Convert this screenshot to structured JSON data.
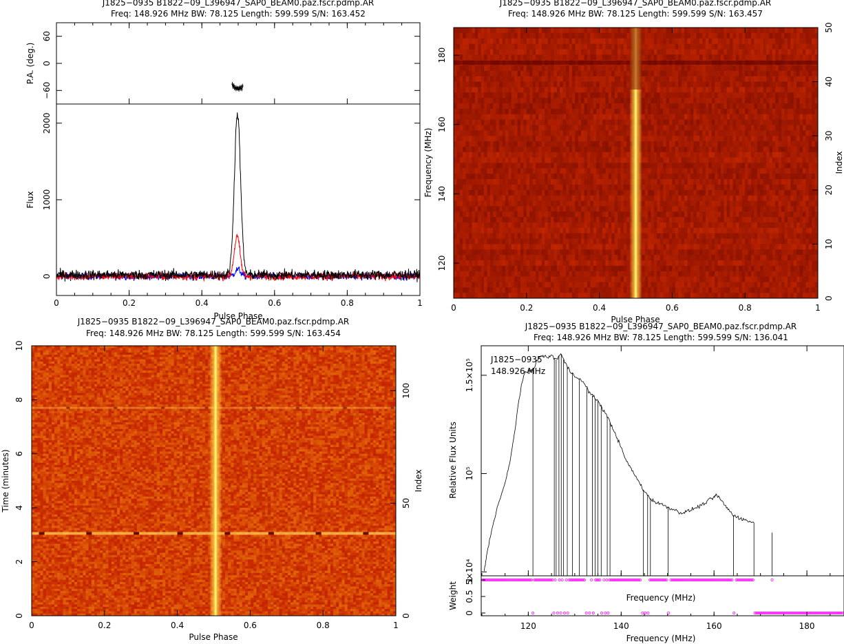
{
  "colors": {
    "background": "#ffffff",
    "axes": "#000000",
    "total_intensity": "#000000",
    "linear_pol": "#ff0000",
    "circular_pol": "#0000ff",
    "weights": "#ff00ff",
    "heat_low": "#6b0000",
    "heat_mid": "#c0501a",
    "heat_high": "#ffff80"
  },
  "chart_data": [
    {
      "id": "profile",
      "type": "line",
      "title": "J1825−0935  B1822−09_L396947_SAP0_BEAM0.paz.fscr.pdmp.AR",
      "subtitle": "Freq: 148.926 MHz  BW: 78.125  Length: 599.599  S/N: 163.452",
      "xlabel": "Pulse Phase",
      "x_ticks": [
        "0",
        "0.2",
        "0.4",
        "0.6",
        "0.8",
        "1"
      ],
      "xlim": [
        0,
        1
      ],
      "panels": [
        {
          "ylabel": "P.A. (deg.)",
          "y_ticks": [
            "−60",
            "0",
            "60"
          ],
          "ylim": [
            -90,
            90
          ],
          "points": [
            [
              0.484,
              -46
            ],
            [
              0.486,
              -52
            ],
            [
              0.488,
              -49
            ],
            [
              0.49,
              -55
            ],
            [
              0.492,
              -53
            ],
            [
              0.494,
              -57
            ],
            [
              0.496,
              -54
            ],
            [
              0.498,
              -56
            ],
            [
              0.5,
              -55
            ],
            [
              0.502,
              -58
            ],
            [
              0.504,
              -53
            ],
            [
              0.506,
              -56
            ],
            [
              0.508,
              -52
            ],
            [
              0.51,
              -57
            ],
            [
              0.512,
              -50
            ]
          ]
        },
        {
          "ylabel": "Flux",
          "y_ticks": [
            "0",
            "1000",
            "2000"
          ],
          "ylim": [
            -250,
            2250
          ],
          "series": [
            {
              "key": "total",
              "peak": 2110,
              "center": 0.498,
              "width": 0.0085,
              "noise": 28
            },
            {
              "key": "linear",
              "peak": 520,
              "center": 0.497,
              "width": 0.008,
              "noise": 22
            },
            {
              "key": "circular",
              "peak": 90,
              "center": 0.499,
              "width": 0.008,
              "noise": 20
            }
          ]
        }
      ]
    },
    {
      "id": "freq_phase",
      "type": "heatmap",
      "title": "J1825−0935  B1822−09_L396947_SAP0_BEAM0.paz.fscr.pdmp.AR",
      "subtitle": "Freq: 148.926 MHz  BW: 78.125  Length: 599.599  S/N: 163.457",
      "xlabel": "Pulse Phase",
      "ylabel": "Frequency (MHz)",
      "y2label": "Index",
      "x_ticks": [
        "0",
        "0.2",
        "0.4",
        "0.6",
        "0.8",
        "1"
      ],
      "y_ticks": [
        "120",
        "140",
        "160",
        "180"
      ],
      "y2_ticks": [
        "0",
        "10",
        "20",
        "30",
        "40",
        "50"
      ],
      "xlim": [
        0,
        1
      ],
      "ylim": [
        109.863,
        187.988
      ],
      "y2lim": [
        0,
        50
      ],
      "pulse_center": 0.5
    },
    {
      "id": "time_phase",
      "type": "heatmap",
      "title": "J1825−0935  B1822−09_L396947_SAP0_BEAM0.paz.fscr.pdmp.AR",
      "subtitle": "Freq: 148.926 MHz  BW: 78.125  Length: 599.599  S/N: 163.454",
      "xlabel": "Pulse Phase",
      "ylabel": "Time (minutes)",
      "y2label": "Index",
      "x_ticks": [
        "0",
        "0.2",
        "0.4",
        "0.6",
        "0.8",
        "1"
      ],
      "y_ticks": [
        "0",
        "2",
        "4",
        "6",
        "8",
        "10"
      ],
      "y2_ticks": [
        "0",
        "50",
        "100"
      ],
      "xlim": [
        0,
        1
      ],
      "ylim": [
        0,
        10
      ],
      "y2lim": [
        0,
        120
      ],
      "pulse_center": 0.505
    },
    {
      "id": "bandpass",
      "type": "line",
      "title": "J1825−0935  B1822−09_L396947_SAP0_BEAM0.paz.fscr.pdmp.AR",
      "subtitle": "Freq: 148.926 MHz  BW: 78.125  Length: 599.599  S/N: 136.041",
      "annotation_line1": "J1825−0935",
      "annotation_line2": "148.926 MHz",
      "xlabel": "Frequency (MHz)",
      "xlabel_mid": "Frequency (MHz)",
      "ylabel": "Relative Flux Units",
      "ylabel_weight": "Weight",
      "x_ticks": [
        "120",
        "140",
        "160",
        "180"
      ],
      "y_ticks": [
        "5×10⁴",
        "10⁵",
        "1.5×10⁵"
      ],
      "weight_ticks": [
        "0",
        "0.5",
        "1"
      ],
      "xlim": [
        109.863,
        187.988
      ],
      "ylim": [
        48000,
        165000
      ],
      "curve": [
        [
          110.5,
          50000
        ],
        [
          111,
          58000
        ],
        [
          112,
          70000
        ],
        [
          113,
          80000
        ],
        [
          114,
          88000
        ],
        [
          115,
          95000
        ],
        [
          116,
          105000
        ],
        [
          117,
          120000
        ],
        [
          118,
          138000
        ],
        [
          119,
          150000
        ],
        [
          120,
          152000
        ],
        [
          121,
          153000
        ],
        [
          122,
          158000
        ],
        [
          123,
          160000
        ],
        [
          124,
          159000
        ],
        [
          125,
          160000
        ],
        [
          126,
          158000
        ],
        [
          127,
          161000
        ],
        [
          128,
          156000
        ],
        [
          129,
          152000
        ],
        [
          130,
          150000
        ],
        [
          131,
          148000
        ],
        [
          132,
          146000
        ],
        [
          133,
          142000
        ],
        [
          134,
          139000
        ],
        [
          135,
          137000
        ],
        [
          136,
          133000
        ],
        [
          137,
          129000
        ],
        [
          138,
          124000
        ],
        [
          139,
          119000
        ],
        [
          140,
          113000
        ],
        [
          141,
          107000
        ],
        [
          142,
          103000
        ],
        [
          143,
          99000
        ],
        [
          144,
          95000
        ],
        [
          145,
          91000
        ],
        [
          146,
          88000
        ],
        [
          147,
          86000
        ],
        [
          148,
          85000
        ],
        [
          149,
          84000
        ],
        [
          150,
          83000
        ],
        [
          151,
          82000
        ],
        [
          152,
          81000
        ],
        [
          153,
          80000
        ],
        [
          154,
          80500
        ],
        [
          155,
          81500
        ],
        [
          156,
          82500
        ],
        [
          157,
          83500
        ],
        [
          158,
          85000
        ],
        [
          159,
          86500
        ],
        [
          160,
          88000
        ],
        [
          160.5,
          89000
        ],
        [
          161,
          88000
        ],
        [
          162,
          85000
        ],
        [
          163,
          82000
        ],
        [
          164,
          79000
        ],
        [
          165,
          78000
        ],
        [
          166,
          77000
        ],
        [
          167,
          76000
        ],
        [
          168,
          75500
        ],
        [
          168.6,
          75000
        ]
      ],
      "zapped": [
        121,
        125.6,
        126,
        126.6,
        127.1,
        127.6,
        128.4,
        129.5,
        131,
        132.6,
        133.8,
        134.4,
        135,
        135.7,
        137,
        137.6,
        144.8,
        145.7,
        146.3,
        150.1,
        164.2,
        168.6
      ],
      "lone_spike": [
        172.5,
        70000
      ],
      "weights_zero": [
        121,
        125.5,
        126.3,
        127,
        127.8,
        128.5,
        132.5,
        133.2,
        134,
        135.8,
        136.6,
        137.2,
        144.6,
        145.2,
        145.8,
        150.2,
        164.3
      ]
    }
  ]
}
